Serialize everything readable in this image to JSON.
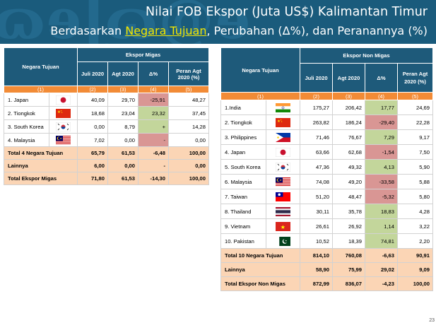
{
  "header": {
    "title": "Nilai FOB Ekspor (Juta US$) Kalimantan Timur",
    "subtitle_prefix": "Berdasarkan ",
    "subtitle_highlight": "Negara Tujuan",
    "subtitle_suffix": ", Perubahan (Δ%), dan Peranannya (%)",
    "decoration": "ɷɘɭɷ@ɘ"
  },
  "migas": {
    "col_country": "Negara Tujuan",
    "group_header": "Ekspor Migas",
    "cols": [
      "Juli 2020",
      "Agt 2020",
      "Δ%",
      "Peran Agt 2020 (%)"
    ],
    "nums": [
      "(1)",
      "(2)",
      "(3)",
      "(4)",
      "(5)"
    ],
    "rows": [
      {
        "name": "1.  Japan",
        "flag": "japan",
        "v1": "40,09",
        "v2": "29,70",
        "d": "-25,91",
        "dc": "neg",
        "p": "48,27"
      },
      {
        "name": "2. Tiongkok",
        "flag": "china",
        "v1": "18,68",
        "v2": "23,04",
        "d": "23,32",
        "dc": "pos",
        "p": "37,45"
      },
      {
        "name": "3. South Korea",
        "flag": "korea",
        "v1": "0,00",
        "v2": "8,79",
        "d": "+",
        "dc": "pos",
        "p": "14,28"
      },
      {
        "name": "4. Malaysia",
        "flag": "malaysia",
        "v1": "7,02",
        "v2": "0,00",
        "d": "-",
        "dc": "neg",
        "p": "0,00"
      }
    ],
    "totals": [
      {
        "name": "Total 4 Negara Tujuan",
        "v1": "65,79",
        "v2": "61,53",
        "d": "-6,48",
        "p": "100,00"
      },
      {
        "name": "Lainnya",
        "v1": "6,00",
        "v2": "0,00",
        "d": "-",
        "p": "0,00"
      },
      {
        "name": "Total Ekspor Migas",
        "v1": "71,80",
        "v2": "61,53",
        "d": "-14,30",
        "p": "100,00"
      }
    ]
  },
  "nonmigas": {
    "col_country": "Negara Tujuan",
    "group_header": "Ekspor Non Migas",
    "cols": [
      "Juli 2020",
      "Agt 2020",
      "Δ%",
      "Peran Agt 2020 (%)"
    ],
    "nums": [
      "(1)",
      "(2)",
      "(3)",
      "(4)",
      "(5)"
    ],
    "rows": [
      {
        "name": "1.India",
        "flag": "india",
        "v1": "175,27",
        "v2": "206,42",
        "d": "17,77",
        "dc": "pos",
        "p": "24,69"
      },
      {
        "name": "2. Tiongkok",
        "flag": "china",
        "v1": "263,82",
        "v2": "186,24",
        "d": "-29,40",
        "dc": "neg",
        "p": "22,28"
      },
      {
        "name": "3. Philippines",
        "flag": "philippines",
        "v1": "71,46",
        "v2": "76,67",
        "d": "7,29",
        "dc": "pos",
        "p": "9,17"
      },
      {
        "name": "4. Japan",
        "flag": "japan",
        "v1": "63,66",
        "v2": "62,68",
        "d": "-1,54",
        "dc": "neg",
        "p": "7,50"
      },
      {
        "name": "5. South Korea",
        "flag": "korea",
        "v1": "47,36",
        "v2": "49,32",
        "d": "4,13",
        "dc": "pos",
        "p": "5,90"
      },
      {
        "name": "6. Malaysia",
        "flag": "malaysia",
        "v1": "74,08",
        "v2": "49,20",
        "d": "-33,58",
        "dc": "neg",
        "p": "5,88"
      },
      {
        "name": "7. Taiwan",
        "flag": "taiwan",
        "v1": "51,20",
        "v2": "48,47",
        "d": "-5,32",
        "dc": "neg",
        "p": "5,80"
      },
      {
        "name": "8. Thailand",
        "flag": "thailand",
        "v1": "30,11",
        "v2": "35,78",
        "d": "18,83",
        "dc": "pos",
        "p": "4,28"
      },
      {
        "name": "9. Vietnam",
        "flag": "vietnam",
        "v1": "26,61",
        "v2": "26,92",
        "d": "1,14",
        "dc": "pos",
        "p": "3,22"
      },
      {
        "name": "10. Pakistan",
        "flag": "pakistan",
        "v1": "10,52",
        "v2": "18,39",
        "d": "74,81",
        "dc": "pos",
        "p": "2,20"
      }
    ],
    "totals": [
      {
        "name": "Total 10 Negara Tujuan",
        "v1": "814,10",
        "v2": "760,08",
        "d": "-6,63",
        "p": "90,91"
      },
      {
        "name": "Lainnya",
        "v1": "58,90",
        "v2": "75,99",
        "d": "29,02",
        "p": "9,09"
      },
      {
        "name": "Total Ekspor Non Migas",
        "v1": "872,99",
        "v2": "836,07",
        "d": "-4,23",
        "p": "100,00"
      }
    ]
  },
  "colors": {
    "header_blue": "#1e5a7a",
    "orange": "#f28b36",
    "total_peach": "#fbd5b5",
    "neg_red": "#d99694",
    "pos_green": "#c3d69b"
  },
  "page_number": "23"
}
